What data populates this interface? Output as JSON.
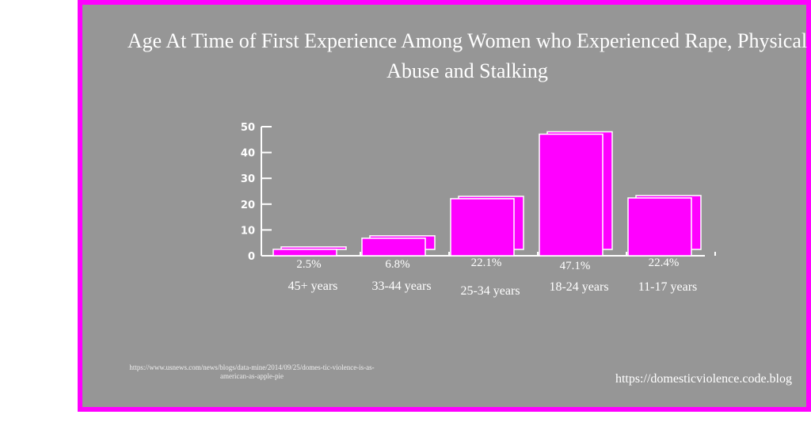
{
  "chart_data": {
    "type": "bar",
    "title": "Age At Time of First Experience Among Women who Experienced Rape, Physical Abuse and Stalking",
    "categories": [
      "45+ years",
      "33-44 years",
      "25-34 years",
      "18-24 years",
      "11-17 years"
    ],
    "values": [
      2.5,
      6.8,
      22.1,
      47.1,
      22.4
    ],
    "data_labels": [
      "2.5%",
      "6.8%",
      "22.1%",
      "47.1%",
      "22.4%"
    ],
    "yticks": [
      "0",
      "10",
      "20",
      "30",
      "40",
      "50"
    ],
    "ylim": [
      0,
      50
    ],
    "grid": false,
    "bar_color": "#ff00ff",
    "style": "3d offset"
  },
  "source": "https://www.usnews.com/news/blogs/data-mine/2014/09/25/domes-tic-violence-is-as-american-as-apple-pie",
  "blog": "https://domesticviolence.code.blog",
  "colors": {
    "frame": "#ff00ff",
    "background": "#969696"
  }
}
